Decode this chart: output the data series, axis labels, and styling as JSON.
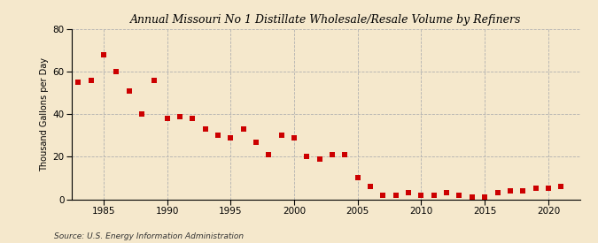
{
  "title": "Annual Missouri No 1 Distillate Wholesale/Resale Volume by Refiners",
  "ylabel": "Thousand Gallons per Day",
  "source": "Source: U.S. Energy Information Administration",
  "background_color": "#f5e8cc",
  "marker_color": "#cc0000",
  "marker": "s",
  "marker_size": 16,
  "xlim": [
    1982.5,
    2022.5
  ],
  "ylim": [
    0,
    80
  ],
  "yticks": [
    0,
    20,
    40,
    60,
    80
  ],
  "xticks": [
    1985,
    1990,
    1995,
    2000,
    2005,
    2010,
    2015,
    2020
  ],
  "years": [
    1983,
    1984,
    1985,
    1986,
    1987,
    1988,
    1989,
    1990,
    1991,
    1992,
    1993,
    1994,
    1995,
    1996,
    1997,
    1998,
    1999,
    2000,
    2001,
    2002,
    2003,
    2004,
    2005,
    2006,
    2007,
    2008,
    2009,
    2010,
    2011,
    2012,
    2013,
    2014,
    2015,
    2016,
    2017,
    2018,
    2019,
    2020,
    2021
  ],
  "values": [
    55,
    56,
    68,
    60,
    51,
    40,
    56,
    38,
    39,
    38,
    33,
    30,
    29,
    33,
    27,
    21,
    30,
    29,
    20,
    19,
    21,
    21,
    10,
    6,
    2,
    2,
    3,
    2,
    2,
    3,
    2,
    1,
    1,
    3,
    4,
    4,
    5,
    5,
    6
  ]
}
